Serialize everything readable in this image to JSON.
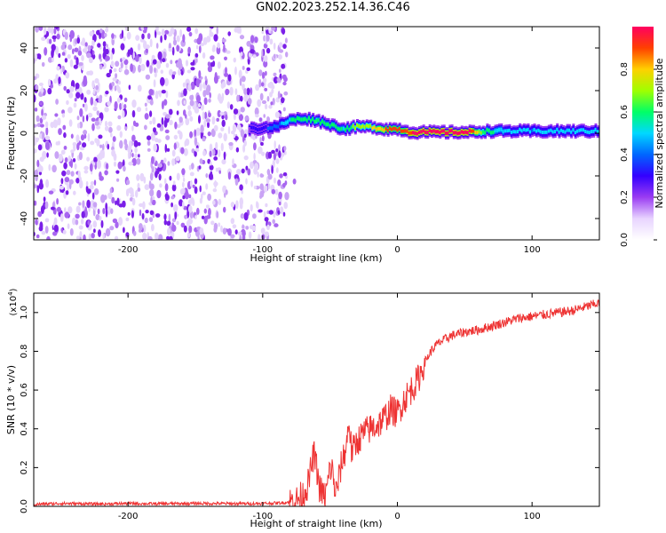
{
  "title": "GN02.2023.252.14.36.C46",
  "chart_data": [
    {
      "type": "heatmap",
      "name": "spectrogram",
      "xlabel": "Height of straight line (km)",
      "ylabel": "Frequency (Hz)",
      "xlim": [
        -270,
        150
      ],
      "ylim": [
        -50,
        50
      ],
      "x_ticks": [
        -200,
        -100,
        0,
        100
      ],
      "y_ticks": [
        -40,
        -20,
        0,
        20,
        40
      ],
      "colorbar": {
        "label": "Normalized spectral amplitude",
        "range": [
          0.0,
          1.0
        ],
        "ticks": [
          0.0,
          0.2,
          0.4,
          0.6,
          0.8
        ],
        "colormap": [
          "#ffffff",
          "#e8d4ff",
          "#9a3cf2",
          "#3300ff",
          "#0066ff",
          "#00d8ff",
          "#00ff66",
          "#a0ff00",
          "#ffd000",
          "#ff4000",
          "#ff0060"
        ]
      },
      "noise_region": {
        "x_from": -270,
        "x_to": -82,
        "amplitude": [
          0.02,
          0.3
        ]
      },
      "signal_track": [
        {
          "x": -110,
          "freq": 2,
          "amp": 0.25
        },
        {
          "x": -90,
          "freq": 3,
          "amp": 0.4
        },
        {
          "x": -80,
          "freq": 6,
          "amp": 0.55
        },
        {
          "x": -70,
          "freq": 7,
          "amp": 0.6
        },
        {
          "x": -60,
          "freq": 6,
          "amp": 0.65
        },
        {
          "x": -50,
          "freq": 4,
          "amp": 0.6
        },
        {
          "x": -40,
          "freq": 2,
          "amp": 0.55
        },
        {
          "x": -30,
          "freq": 3,
          "amp": 0.7
        },
        {
          "x": -20,
          "freq": 3,
          "amp": 0.75
        },
        {
          "x": -10,
          "freq": 2,
          "amp": 0.85
        },
        {
          "x": 0,
          "freq": 2,
          "amp": 0.9
        },
        {
          "x": 10,
          "freq": 0.5,
          "amp": 0.95
        },
        {
          "x": 30,
          "freq": 0.5,
          "amp": 0.97
        },
        {
          "x": 55,
          "freq": 0.5,
          "amp": 0.95
        },
        {
          "x": 65,
          "freq": 1,
          "amp": 0.6
        },
        {
          "x": 80,
          "freq": 1,
          "amp": 0.5
        },
        {
          "x": 100,
          "freq": 1,
          "amp": 0.45
        },
        {
          "x": 120,
          "freq": 1,
          "amp": 0.5
        },
        {
          "x": 150,
          "freq": 1,
          "amp": 0.45
        }
      ]
    },
    {
      "type": "line",
      "name": "snr",
      "xlabel": "Height of straight line (km)",
      "ylabel": "SNR (10 * v/v)",
      "y_scale_label": "(x10",
      "y_scale_exp": "4",
      "y_scale_close": ")",
      "xlim": [
        -270,
        150
      ],
      "ylim": [
        0,
        1.1
      ],
      "x_ticks": [
        -200,
        -100,
        0,
        100
      ],
      "y_ticks": [
        0.0,
        0.2,
        0.4,
        0.6,
        0.8,
        1.0
      ],
      "line_color": "#ee3333",
      "series": [
        {
          "x": [
            -270,
            -250,
            -220,
            -200,
            -180,
            -150,
            -120,
            -100,
            -85,
            -75,
            -70,
            -66,
            -64,
            -62,
            -60,
            -58,
            -56,
            -54,
            -52,
            -50,
            -48,
            -46,
            -44,
            -42,
            -40,
            -38,
            -36,
            -34,
            -32,
            -30,
            -28,
            -25,
            -20,
            -15,
            -10,
            -5,
            0,
            5,
            10,
            15,
            20,
            25,
            30,
            40,
            50,
            60,
            70,
            80,
            90,
            100,
            110,
            120,
            130,
            140,
            150
          ],
          "y": [
            0.01,
            0.015,
            0.012,
            0.015,
            0.013,
            0.015,
            0.014,
            0.015,
            0.018,
            0.03,
            0.06,
            0.12,
            0.2,
            0.27,
            0.2,
            0.1,
            0.07,
            0.05,
            0.1,
            0.2,
            0.18,
            0.06,
            0.12,
            0.2,
            0.26,
            0.3,
            0.45,
            0.28,
            0.3,
            0.34,
            0.35,
            0.38,
            0.4,
            0.42,
            0.45,
            0.5,
            0.48,
            0.55,
            0.6,
            0.65,
            0.74,
            0.8,
            0.84,
            0.88,
            0.9,
            0.91,
            0.93,
            0.95,
            0.97,
            0.98,
            0.99,
            1.0,
            1.01,
            1.03,
            1.05
          ]
        }
      ]
    }
  ]
}
